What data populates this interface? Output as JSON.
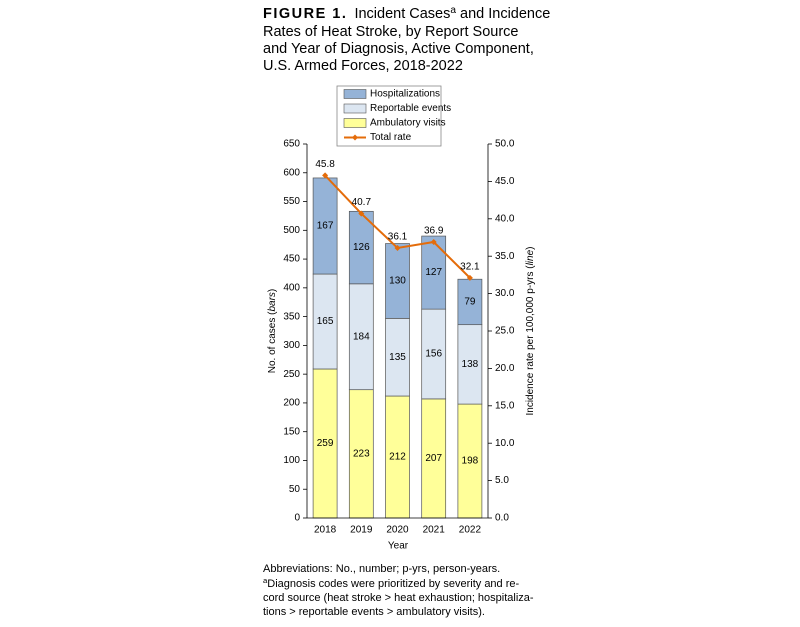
{
  "chart_data": {
    "type": "bar",
    "stacked": true,
    "title": {
      "label": "FIGURE 1.",
      "first_line": [
        "Incident Cases",
        "a",
        "and Incidence"
      ],
      "lines": [
        "Rates of Heat Stroke, by Report Source",
        "and Year of Diagnosis, Active Component,",
        "U.S. Armed Forces, 2018-2022"
      ]
    },
    "xlabel": "Year",
    "ylabel": [
      "No. of cases (",
      "bars",
      ")"
    ],
    "y2label": [
      "Incidence rate per 100,000 p-yrs (",
      "line",
      ")"
    ],
    "categories": [
      "2018",
      "2019",
      "2020",
      "2021",
      "2022"
    ],
    "series": [
      {
        "name": "Ambulatory visits",
        "color": "#ffff99",
        "values": [
          259,
          223,
          212,
          207,
          198
        ]
      },
      {
        "name": "Reportable events",
        "color": "#dce6f1",
        "values": [
          165,
          184,
          135,
          156,
          138
        ]
      },
      {
        "name": "Hospitalizations",
        "color": "#95b3d7",
        "values": [
          167,
          126,
          130,
          127,
          79
        ]
      },
      {
        "name": "Total rate",
        "color": "#e46c0a",
        "type": "line",
        "axis": "y2",
        "values": [
          45.8,
          40.7,
          36.1,
          36.9,
          32.1
        ]
      }
    ],
    "ylim": [
      0,
      650
    ],
    "yticks": [
      0,
      50,
      100,
      150,
      200,
      250,
      300,
      350,
      400,
      450,
      500,
      550,
      600,
      650
    ],
    "y2lim": [
      0,
      50
    ],
    "y2ticks": [
      {
        "value": 0,
        "label": "0.0"
      },
      {
        "value": 5,
        "label": "5.0"
      },
      {
        "value": 10,
        "label": "10.0"
      },
      {
        "value": 15,
        "label": "15.0"
      },
      {
        "value": 20,
        "label": "20.0"
      },
      {
        "value": 25,
        "label": "25.0"
      },
      {
        "value": 30,
        "label": "30.0"
      },
      {
        "value": 35,
        "label": "35.0"
      },
      {
        "value": 40,
        "label": "40.0"
      },
      {
        "value": 45,
        "label": "45.0"
      },
      {
        "value": 50,
        "label": "50.0"
      }
    ],
    "grid": false,
    "legend": "top",
    "notes": {
      "abbreviations": "Abbreviations: No., number; p-yrs, person-years.",
      "footnote_mark": "a",
      "footnote_lines": [
        "Diagnosis codes were prioritized by severity and re-",
        "cord source (heat stroke > heat exhaustion; hospitaliza-",
        "tions > reportable events > ambulatory visits)."
      ]
    }
  }
}
